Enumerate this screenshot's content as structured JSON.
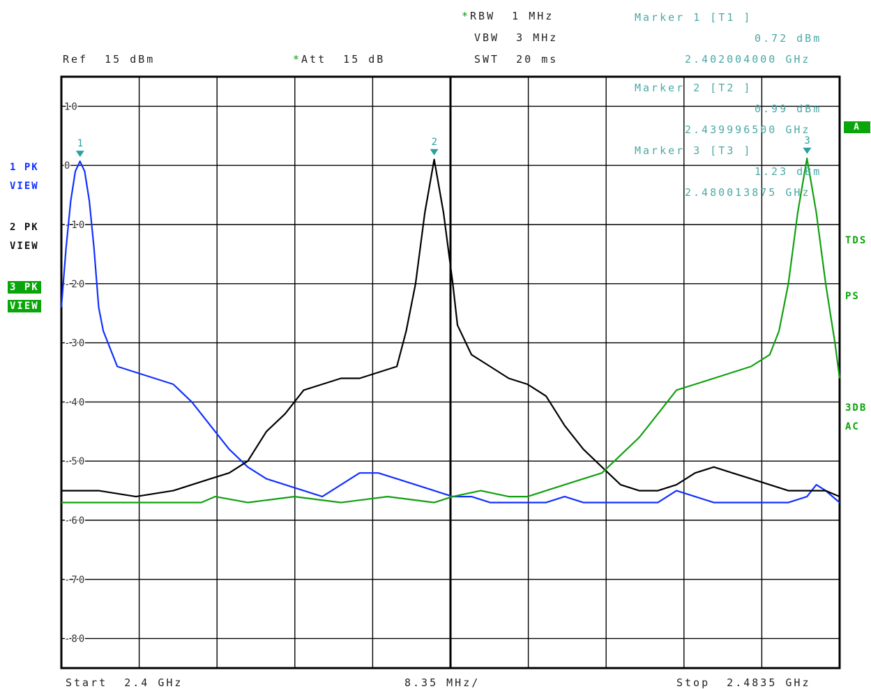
{
  "header": {
    "rbw": "RBW  1 MHz",
    "vbw": "VBW  3 MHz",
    "swt": "SWT  20 ms",
    "ref": "Ref  15 dBm",
    "att": "Att  15 dB"
  },
  "markers_readout": [
    {
      "title": "Marker 1 [T1 ]",
      "level": "0.72 dBm",
      "freq": "2.402004000 GHz"
    },
    {
      "title": "Marker 2 [T2 ]",
      "level": "0.99 dBm",
      "freq": "2.439996500 GHz"
    },
    {
      "title": "Marker 3 [T3 ]",
      "level": "1.23 dBm",
      "freq": "2.480013875 GHz"
    }
  ],
  "left_panel": {
    "trace1": [
      "1 PK",
      "VIEW"
    ],
    "trace2": [
      "2 PK",
      "VIEW"
    ],
    "trace3": [
      "3 PK",
      "VIEW"
    ]
  },
  "right_panel": {
    "a_badge": "A",
    "tds": "TDS",
    "ps": "PS",
    "db3": "3DB",
    "ac": "AC"
  },
  "footer": {
    "start": "Start  2.4 GHz",
    "span_div": "8.35 MHz/",
    "stop": "Stop  2.4835 GHz"
  },
  "colors": {
    "trace1": "#1030ff",
    "trace2": "#000000",
    "trace3": "#10a010",
    "marker": "#2aa0a0",
    "grid": "#000000",
    "badge": "#0aa50a"
  },
  "chart_data": {
    "type": "line",
    "title": "",
    "xlabel": "",
    "ylabel": "",
    "xlim": [
      2.4,
      2.4835
    ],
    "ylim": [
      -85,
      15
    ],
    "x_unit": "GHz",
    "y_unit": "dBm",
    "y_ticks": [
      10,
      0,
      -10,
      -20,
      -30,
      -40,
      -50,
      -60,
      -70,
      -80
    ],
    "grid": true,
    "series": [
      {
        "id": "trace1",
        "points": [
          [
            2.4,
            -24
          ],
          [
            2.4005,
            -14
          ],
          [
            2.401,
            -6
          ],
          [
            2.4015,
            -1
          ],
          [
            2.402,
            0.7
          ],
          [
            2.4025,
            -1
          ],
          [
            2.403,
            -6
          ],
          [
            2.4035,
            -14
          ],
          [
            2.404,
            -24
          ],
          [
            2.4045,
            -28
          ],
          [
            2.406,
            -34
          ],
          [
            2.408,
            -35
          ],
          [
            2.41,
            -36
          ],
          [
            2.412,
            -37
          ],
          [
            2.414,
            -40
          ],
          [
            2.416,
            -44
          ],
          [
            2.418,
            -48
          ],
          [
            2.42,
            -51
          ],
          [
            2.422,
            -53
          ],
          [
            2.424,
            -54
          ],
          [
            2.426,
            -55
          ],
          [
            2.428,
            -56
          ],
          [
            2.43,
            -54
          ],
          [
            2.432,
            -52
          ],
          [
            2.434,
            -52
          ],
          [
            2.436,
            -53
          ],
          [
            2.438,
            -54
          ],
          [
            2.44,
            -55
          ],
          [
            2.442,
            -56
          ],
          [
            2.444,
            -56
          ],
          [
            2.446,
            -57
          ],
          [
            2.448,
            -57
          ],
          [
            2.45,
            -57
          ],
          [
            2.452,
            -57
          ],
          [
            2.454,
            -56
          ],
          [
            2.456,
            -57
          ],
          [
            2.458,
            -57
          ],
          [
            2.46,
            -57
          ],
          [
            2.462,
            -57
          ],
          [
            2.464,
            -57
          ],
          [
            2.466,
            -55
          ],
          [
            2.468,
            -56
          ],
          [
            2.47,
            -57
          ],
          [
            2.472,
            -57
          ],
          [
            2.474,
            -57
          ],
          [
            2.476,
            -57
          ],
          [
            2.478,
            -57
          ],
          [
            2.48,
            -56
          ],
          [
            2.481,
            -54
          ],
          [
            2.482,
            -55
          ],
          [
            2.4835,
            -57
          ]
        ]
      },
      {
        "id": "trace2",
        "points": [
          [
            2.4,
            -55
          ],
          [
            2.404,
            -55
          ],
          [
            2.408,
            -56
          ],
          [
            2.412,
            -55
          ],
          [
            2.416,
            -53
          ],
          [
            2.418,
            -52
          ],
          [
            2.42,
            -50
          ],
          [
            2.422,
            -45
          ],
          [
            2.424,
            -42
          ],
          [
            2.426,
            -38
          ],
          [
            2.428,
            -37
          ],
          [
            2.43,
            -36
          ],
          [
            2.432,
            -36
          ],
          [
            2.434,
            -35
          ],
          [
            2.436,
            -34
          ],
          [
            2.437,
            -28
          ],
          [
            2.438,
            -20
          ],
          [
            2.439,
            -8
          ],
          [
            2.44,
            1.0
          ],
          [
            2.441,
            -8
          ],
          [
            2.442,
            -20
          ],
          [
            2.4425,
            -27
          ],
          [
            2.444,
            -32
          ],
          [
            2.446,
            -34
          ],
          [
            2.448,
            -36
          ],
          [
            2.45,
            -37
          ],
          [
            2.452,
            -39
          ],
          [
            2.454,
            -44
          ],
          [
            2.456,
            -48
          ],
          [
            2.458,
            -51
          ],
          [
            2.46,
            -54
          ],
          [
            2.462,
            -55
          ],
          [
            2.464,
            -55
          ],
          [
            2.466,
            -54
          ],
          [
            2.468,
            -52
          ],
          [
            2.47,
            -51
          ],
          [
            2.472,
            -52
          ],
          [
            2.474,
            -53
          ],
          [
            2.476,
            -54
          ],
          [
            2.478,
            -55
          ],
          [
            2.48,
            -55
          ],
          [
            2.482,
            -55
          ],
          [
            2.4835,
            -56
          ]
        ]
      },
      {
        "id": "trace3",
        "points": [
          [
            2.4,
            -57
          ],
          [
            2.405,
            -57
          ],
          [
            2.41,
            -57
          ],
          [
            2.415,
            -57
          ],
          [
            2.4165,
            -56
          ],
          [
            2.42,
            -57
          ],
          [
            2.425,
            -56
          ],
          [
            2.43,
            -57
          ],
          [
            2.435,
            -56
          ],
          [
            2.44,
            -57
          ],
          [
            2.442,
            -56
          ],
          [
            2.445,
            -55
          ],
          [
            2.448,
            -56
          ],
          [
            2.45,
            -56
          ],
          [
            2.452,
            -55
          ],
          [
            2.454,
            -54
          ],
          [
            2.456,
            -53
          ],
          [
            2.458,
            -52
          ],
          [
            2.46,
            -49
          ],
          [
            2.462,
            -46
          ],
          [
            2.464,
            -42
          ],
          [
            2.466,
            -38
          ],
          [
            2.468,
            -37
          ],
          [
            2.47,
            -36
          ],
          [
            2.472,
            -35
          ],
          [
            2.474,
            -34
          ],
          [
            2.476,
            -32
          ],
          [
            2.477,
            -28
          ],
          [
            2.478,
            -20
          ],
          [
            2.479,
            -8
          ],
          [
            2.48,
            1.2
          ],
          [
            2.481,
            -8
          ],
          [
            2.482,
            -20
          ],
          [
            2.4825,
            -25
          ],
          [
            2.483,
            -30
          ],
          [
            2.4835,
            -36
          ]
        ]
      }
    ],
    "markers": [
      {
        "label": "1",
        "x": 2.402004,
        "y": 0.72
      },
      {
        "label": "2",
        "x": 2.4399965,
        "y": 0.99
      },
      {
        "label": "3",
        "x": 2.480013875,
        "y": 1.23
      }
    ]
  }
}
